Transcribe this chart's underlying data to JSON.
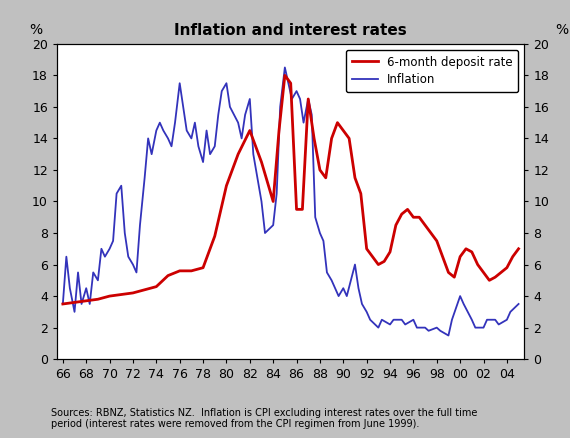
{
  "title": "Inflation and interest rates",
  "ylabel_left": "%",
  "ylabel_right": "%",
  "ylim": [
    0,
    20
  ],
  "yticks": [
    0,
    2,
    4,
    6,
    8,
    10,
    12,
    14,
    16,
    18,
    20
  ],
  "source_note": "Sources: RBNZ, Statistics NZ.  Inflation is CPI excluding interest rates over the full time\nperiod (interest rates were removed from the CPI regimen from June 1999).",
  "legend": [
    {
      "label": "6-month deposit rate",
      "color": "#cc0000",
      "lw": 2.0
    },
    {
      "label": "Inflation",
      "color": "#3333bb",
      "lw": 1.3
    }
  ],
  "background_color": "#c0c0c0",
  "plot_bg": "#ffffff",
  "deposit_rate": {
    "years": [
      1966,
      1967,
      1968,
      1969,
      1970,
      1971,
      1972,
      1973,
      1974,
      1975,
      1976,
      1977,
      1978,
      1979,
      1980,
      1981,
      1982,
      1983,
      1984,
      1984.5,
      1985,
      1985.5,
      1986,
      1986.5,
      1987,
      1987.5,
      1988,
      1988.5,
      1989,
      1989.5,
      1990,
      1990.5,
      1991,
      1991.5,
      1992,
      1992.5,
      1993,
      1993.5,
      1994,
      1994.5,
      1995,
      1995.5,
      1996,
      1996.5,
      1997,
      1997.5,
      1998,
      1998.5,
      1999,
      1999.5,
      2000,
      2000.5,
      2001,
      2001.5,
      2002,
      2002.5,
      2003,
      2003.5,
      2004,
      2004.5,
      2005
    ],
    "values": [
      3.5,
      3.6,
      3.7,
      3.8,
      4.0,
      4.1,
      4.2,
      4.4,
      4.6,
      5.3,
      5.6,
      5.6,
      5.8,
      7.8,
      11.0,
      13.0,
      14.5,
      12.5,
      10.0,
      14.5,
      18.0,
      17.5,
      9.5,
      9.5,
      16.5,
      14.0,
      12.0,
      11.5,
      14.0,
      15.0,
      14.5,
      14.0,
      11.5,
      10.5,
      7.0,
      6.5,
      6.0,
      6.2,
      6.8,
      8.5,
      9.2,
      9.5,
      9.0,
      9.0,
      8.5,
      8.0,
      7.5,
      6.5,
      5.5,
      5.2,
      6.5,
      7.0,
      6.8,
      6.0,
      5.5,
      5.0,
      5.2,
      5.5,
      5.8,
      6.5,
      7.0
    ]
  },
  "inflation": {
    "years": [
      1966,
      1966.3,
      1966.6,
      1967,
      1967.3,
      1967.6,
      1968,
      1968.3,
      1968.6,
      1969,
      1969.3,
      1969.6,
      1970,
      1970.3,
      1970.6,
      1971,
      1971.3,
      1971.6,
      1972,
      1972.3,
      1972.6,
      1973,
      1973.3,
      1973.6,
      1974,
      1974.3,
      1974.6,
      1975,
      1975.3,
      1975.6,
      1976,
      1976.3,
      1976.6,
      1977,
      1977.3,
      1977.6,
      1978,
      1978.3,
      1978.6,
      1979,
      1979.3,
      1979.6,
      1980,
      1980.3,
      1981,
      1981.3,
      1981.6,
      1982,
      1982.3,
      1983,
      1983.3,
      1984,
      1984.3,
      1984.6,
      1985,
      1985.3,
      1985.6,
      1986,
      1986.3,
      1986.6,
      1987,
      1987.3,
      1987.6,
      1988,
      1988.3,
      1988.6,
      1989,
      1989.3,
      1989.6,
      1990,
      1990.3,
      1991,
      1991.3,
      1991.6,
      1992,
      1992.3,
      1993,
      1993.3,
      1994,
      1994.3,
      1995,
      1995.3,
      1996,
      1996.3,
      1997,
      1997.3,
      1998,
      1998.3,
      1999,
      1999.3,
      2000,
      2000.3,
      2001,
      2001.3,
      2002,
      2002.3,
      2003,
      2003.3,
      2004,
      2004.3,
      2005
    ],
    "values": [
      3.5,
      6.5,
      4.5,
      3.0,
      5.5,
      3.5,
      4.5,
      3.5,
      5.5,
      5.0,
      7.0,
      6.5,
      7.0,
      7.5,
      10.5,
      11.0,
      8.0,
      6.5,
      6.0,
      5.5,
      8.5,
      11.5,
      14.0,
      13.0,
      14.5,
      15.0,
      14.5,
      14.0,
      13.5,
      15.0,
      17.5,
      16.0,
      14.5,
      14.0,
      15.0,
      13.5,
      12.5,
      14.5,
      13.0,
      13.5,
      15.5,
      17.0,
      17.5,
      16.0,
      15.0,
      14.0,
      15.5,
      16.5,
      13.0,
      10.0,
      8.0,
      8.5,
      10.5,
      16.0,
      18.5,
      17.5,
      16.5,
      17.0,
      16.5,
      15.0,
      16.5,
      15.5,
      9.0,
      8.0,
      7.5,
      5.5,
      5.0,
      4.5,
      4.0,
      4.5,
      4.0,
      6.0,
      4.5,
      3.5,
      3.0,
      2.5,
      2.0,
      2.5,
      2.2,
      2.5,
      2.5,
      2.2,
      2.5,
      2.0,
      2.0,
      1.8,
      2.0,
      1.8,
      1.5,
      2.5,
      4.0,
      3.5,
      2.5,
      2.0,
      2.0,
      2.5,
      2.5,
      2.2,
      2.5,
      3.0,
      3.5
    ]
  }
}
